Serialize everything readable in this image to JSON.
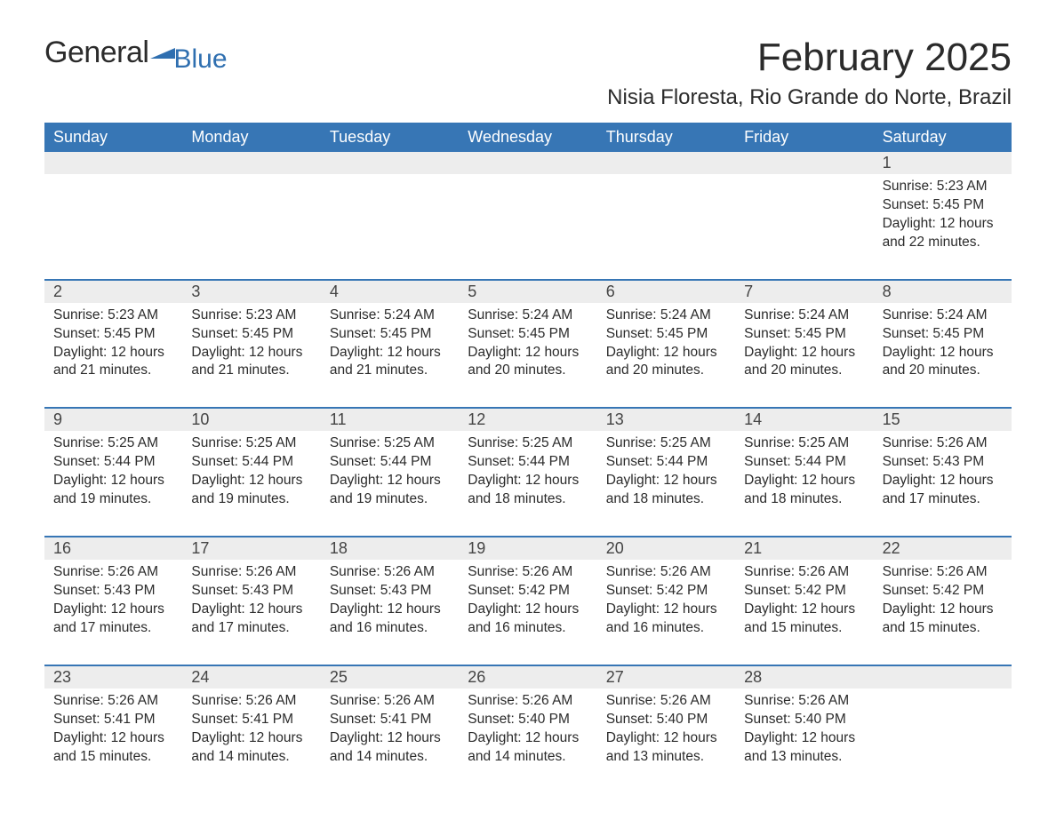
{
  "logo": {
    "word1": "General",
    "word2": "Blue"
  },
  "colors": {
    "brand_blue": "#2f6fb0",
    "header_bg": "#3776b5",
    "header_fg": "#ffffff",
    "daynum_bg": "#ededed",
    "text": "#2b2b2b",
    "page_bg": "#ffffff"
  },
  "title": "February 2025",
  "location": "Nisia Floresta, Rio Grande do Norte, Brazil",
  "weekdays": [
    "Sunday",
    "Monday",
    "Tuesday",
    "Wednesday",
    "Thursday",
    "Friday",
    "Saturday"
  ],
  "weeks": [
    {
      "nums": [
        "",
        "",
        "",
        "",
        "",
        "",
        "1"
      ],
      "cells": [
        null,
        null,
        null,
        null,
        null,
        null,
        {
          "sunrise": "Sunrise: 5:23 AM",
          "sunset": "Sunset: 5:45 PM",
          "day1": "Daylight: 12 hours",
          "day2": "and 22 minutes."
        }
      ]
    },
    {
      "nums": [
        "2",
        "3",
        "4",
        "5",
        "6",
        "7",
        "8"
      ],
      "cells": [
        {
          "sunrise": "Sunrise: 5:23 AM",
          "sunset": "Sunset: 5:45 PM",
          "day1": "Daylight: 12 hours",
          "day2": "and 21 minutes."
        },
        {
          "sunrise": "Sunrise: 5:23 AM",
          "sunset": "Sunset: 5:45 PM",
          "day1": "Daylight: 12 hours",
          "day2": "and 21 minutes."
        },
        {
          "sunrise": "Sunrise: 5:24 AM",
          "sunset": "Sunset: 5:45 PM",
          "day1": "Daylight: 12 hours",
          "day2": "and 21 minutes."
        },
        {
          "sunrise": "Sunrise: 5:24 AM",
          "sunset": "Sunset: 5:45 PM",
          "day1": "Daylight: 12 hours",
          "day2": "and 20 minutes."
        },
        {
          "sunrise": "Sunrise: 5:24 AM",
          "sunset": "Sunset: 5:45 PM",
          "day1": "Daylight: 12 hours",
          "day2": "and 20 minutes."
        },
        {
          "sunrise": "Sunrise: 5:24 AM",
          "sunset": "Sunset: 5:45 PM",
          "day1": "Daylight: 12 hours",
          "day2": "and 20 minutes."
        },
        {
          "sunrise": "Sunrise: 5:24 AM",
          "sunset": "Sunset: 5:45 PM",
          "day1": "Daylight: 12 hours",
          "day2": "and 20 minutes."
        }
      ]
    },
    {
      "nums": [
        "9",
        "10",
        "11",
        "12",
        "13",
        "14",
        "15"
      ],
      "cells": [
        {
          "sunrise": "Sunrise: 5:25 AM",
          "sunset": "Sunset: 5:44 PM",
          "day1": "Daylight: 12 hours",
          "day2": "and 19 minutes."
        },
        {
          "sunrise": "Sunrise: 5:25 AM",
          "sunset": "Sunset: 5:44 PM",
          "day1": "Daylight: 12 hours",
          "day2": "and 19 minutes."
        },
        {
          "sunrise": "Sunrise: 5:25 AM",
          "sunset": "Sunset: 5:44 PM",
          "day1": "Daylight: 12 hours",
          "day2": "and 19 minutes."
        },
        {
          "sunrise": "Sunrise: 5:25 AM",
          "sunset": "Sunset: 5:44 PM",
          "day1": "Daylight: 12 hours",
          "day2": "and 18 minutes."
        },
        {
          "sunrise": "Sunrise: 5:25 AM",
          "sunset": "Sunset: 5:44 PM",
          "day1": "Daylight: 12 hours",
          "day2": "and 18 minutes."
        },
        {
          "sunrise": "Sunrise: 5:25 AM",
          "sunset": "Sunset: 5:44 PM",
          "day1": "Daylight: 12 hours",
          "day2": "and 18 minutes."
        },
        {
          "sunrise": "Sunrise: 5:26 AM",
          "sunset": "Sunset: 5:43 PM",
          "day1": "Daylight: 12 hours",
          "day2": "and 17 minutes."
        }
      ]
    },
    {
      "nums": [
        "16",
        "17",
        "18",
        "19",
        "20",
        "21",
        "22"
      ],
      "cells": [
        {
          "sunrise": "Sunrise: 5:26 AM",
          "sunset": "Sunset: 5:43 PM",
          "day1": "Daylight: 12 hours",
          "day2": "and 17 minutes."
        },
        {
          "sunrise": "Sunrise: 5:26 AM",
          "sunset": "Sunset: 5:43 PM",
          "day1": "Daylight: 12 hours",
          "day2": "and 17 minutes."
        },
        {
          "sunrise": "Sunrise: 5:26 AM",
          "sunset": "Sunset: 5:43 PM",
          "day1": "Daylight: 12 hours",
          "day2": "and 16 minutes."
        },
        {
          "sunrise": "Sunrise: 5:26 AM",
          "sunset": "Sunset: 5:42 PM",
          "day1": "Daylight: 12 hours",
          "day2": "and 16 minutes."
        },
        {
          "sunrise": "Sunrise: 5:26 AM",
          "sunset": "Sunset: 5:42 PM",
          "day1": "Daylight: 12 hours",
          "day2": "and 16 minutes."
        },
        {
          "sunrise": "Sunrise: 5:26 AM",
          "sunset": "Sunset: 5:42 PM",
          "day1": "Daylight: 12 hours",
          "day2": "and 15 minutes."
        },
        {
          "sunrise": "Sunrise: 5:26 AM",
          "sunset": "Sunset: 5:42 PM",
          "day1": "Daylight: 12 hours",
          "day2": "and 15 minutes."
        }
      ]
    },
    {
      "nums": [
        "23",
        "24",
        "25",
        "26",
        "27",
        "28",
        ""
      ],
      "cells": [
        {
          "sunrise": "Sunrise: 5:26 AM",
          "sunset": "Sunset: 5:41 PM",
          "day1": "Daylight: 12 hours",
          "day2": "and 15 minutes."
        },
        {
          "sunrise": "Sunrise: 5:26 AM",
          "sunset": "Sunset: 5:41 PM",
          "day1": "Daylight: 12 hours",
          "day2": "and 14 minutes."
        },
        {
          "sunrise": "Sunrise: 5:26 AM",
          "sunset": "Sunset: 5:41 PM",
          "day1": "Daylight: 12 hours",
          "day2": "and 14 minutes."
        },
        {
          "sunrise": "Sunrise: 5:26 AM",
          "sunset": "Sunset: 5:40 PM",
          "day1": "Daylight: 12 hours",
          "day2": "and 14 minutes."
        },
        {
          "sunrise": "Sunrise: 5:26 AM",
          "sunset": "Sunset: 5:40 PM",
          "day1": "Daylight: 12 hours",
          "day2": "and 13 minutes."
        },
        {
          "sunrise": "Sunrise: 5:26 AM",
          "sunset": "Sunset: 5:40 PM",
          "day1": "Daylight: 12 hours",
          "day2": "and 13 minutes."
        },
        null
      ]
    }
  ]
}
